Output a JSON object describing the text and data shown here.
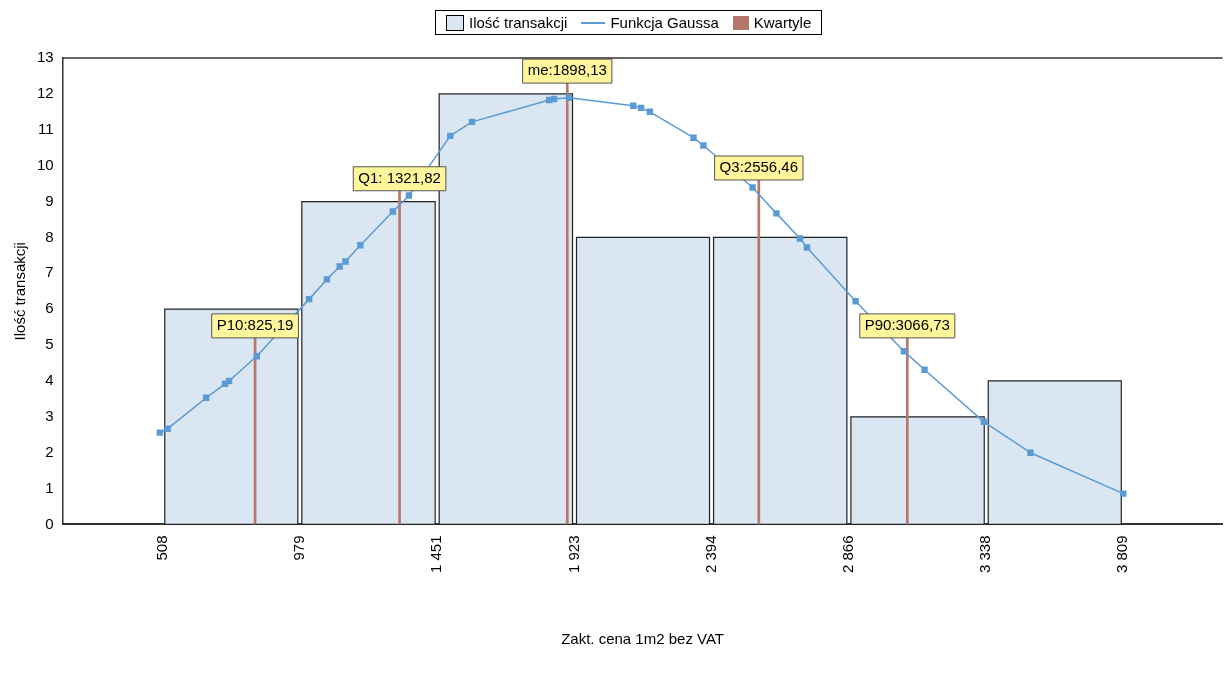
{
  "chart_data": {
    "type": "histogram",
    "xlabel": "Zakt. cena 1m2 bez VAT",
    "ylabel": "Ilość transakcji",
    "bins": [
      508,
      979,
      1451,
      1923,
      2394,
      2866,
      3338,
      3809
    ],
    "series": [
      {
        "name": "Ilość transakcji",
        "color": "#dbe6f3",
        "values": [
          6,
          9,
          12,
          8,
          8,
          3,
          4
        ]
      },
      {
        "name": "Funkcja Gaussa",
        "type": "line",
        "color": "#5b9bd5",
        "marker": "square",
        "x": [
          498,
          525,
          657,
          722,
          736,
          831,
          1011,
          1072,
          1116,
          1136,
          1187,
          1299,
          1354,
          1496,
          1571,
          1836,
          1853,
          1904,
          2125,
          2152,
          2182,
          2332,
          2366,
          2535,
          2617,
          2698,
          2722,
          2889,
          3055,
          3126,
          3330,
          3490,
          3809
        ],
        "values": [
          2.56,
          2.67,
          3.53,
          3.92,
          4.0,
          4.69,
          6.28,
          6.83,
          7.19,
          7.33,
          7.78,
          8.72,
          9.17,
          10.83,
          11.22,
          11.83,
          11.86,
          11.89,
          11.67,
          11.61,
          11.5,
          10.78,
          10.56,
          9.39,
          8.67,
          7.97,
          7.72,
          6.22,
          4.83,
          4.31,
          2.86,
          2.0,
          0.86
        ]
      },
      {
        "name": "Kwartyle",
        "type": "bar",
        "color": "#b5776a",
        "x": [
          825.19,
          1321.82,
          1898.13,
          2556.46,
          3066.73
        ],
        "values": [
          5.2,
          9.3,
          12.3,
          9.6,
          5.2
        ]
      }
    ],
    "annotations": [
      {
        "text": "P10:825,19",
        "x": 825.19,
        "y": 5.2
      },
      {
        "text": "Q1: 1321,82",
        "x": 1321.82,
        "y": 9.3
      },
      {
        "text": "me:1898,13",
        "x": 1898.13,
        "y": 12.3
      },
      {
        "text": "Q3:2556,46",
        "x": 2556.46,
        "y": 9.6
      },
      {
        "text": "P90:3066,73",
        "x": 3066.73,
        "y": 5.2
      }
    ],
    "xlim": [
      164,
      4150
    ],
    "xticks": [
      508,
      979,
      {
        "value": 1451,
        "label": "1 451"
      },
      {
        "value": 1923,
        "label": "1 923"
      },
      {
        "value": 2394,
        "label": "2 394"
      },
      {
        "value": 2866,
        "label": "2 866"
      },
      {
        "value": 3338,
        "label": "3 338"
      },
      {
        "value": 3809,
        "label": "3 809"
      }
    ],
    "ylim": [
      0,
      13
    ],
    "yticks": [
      0,
      1,
      2,
      3,
      4,
      5,
      6,
      7,
      8,
      9,
      10,
      11,
      12,
      13
    ],
    "grid": false,
    "legend": "top"
  }
}
